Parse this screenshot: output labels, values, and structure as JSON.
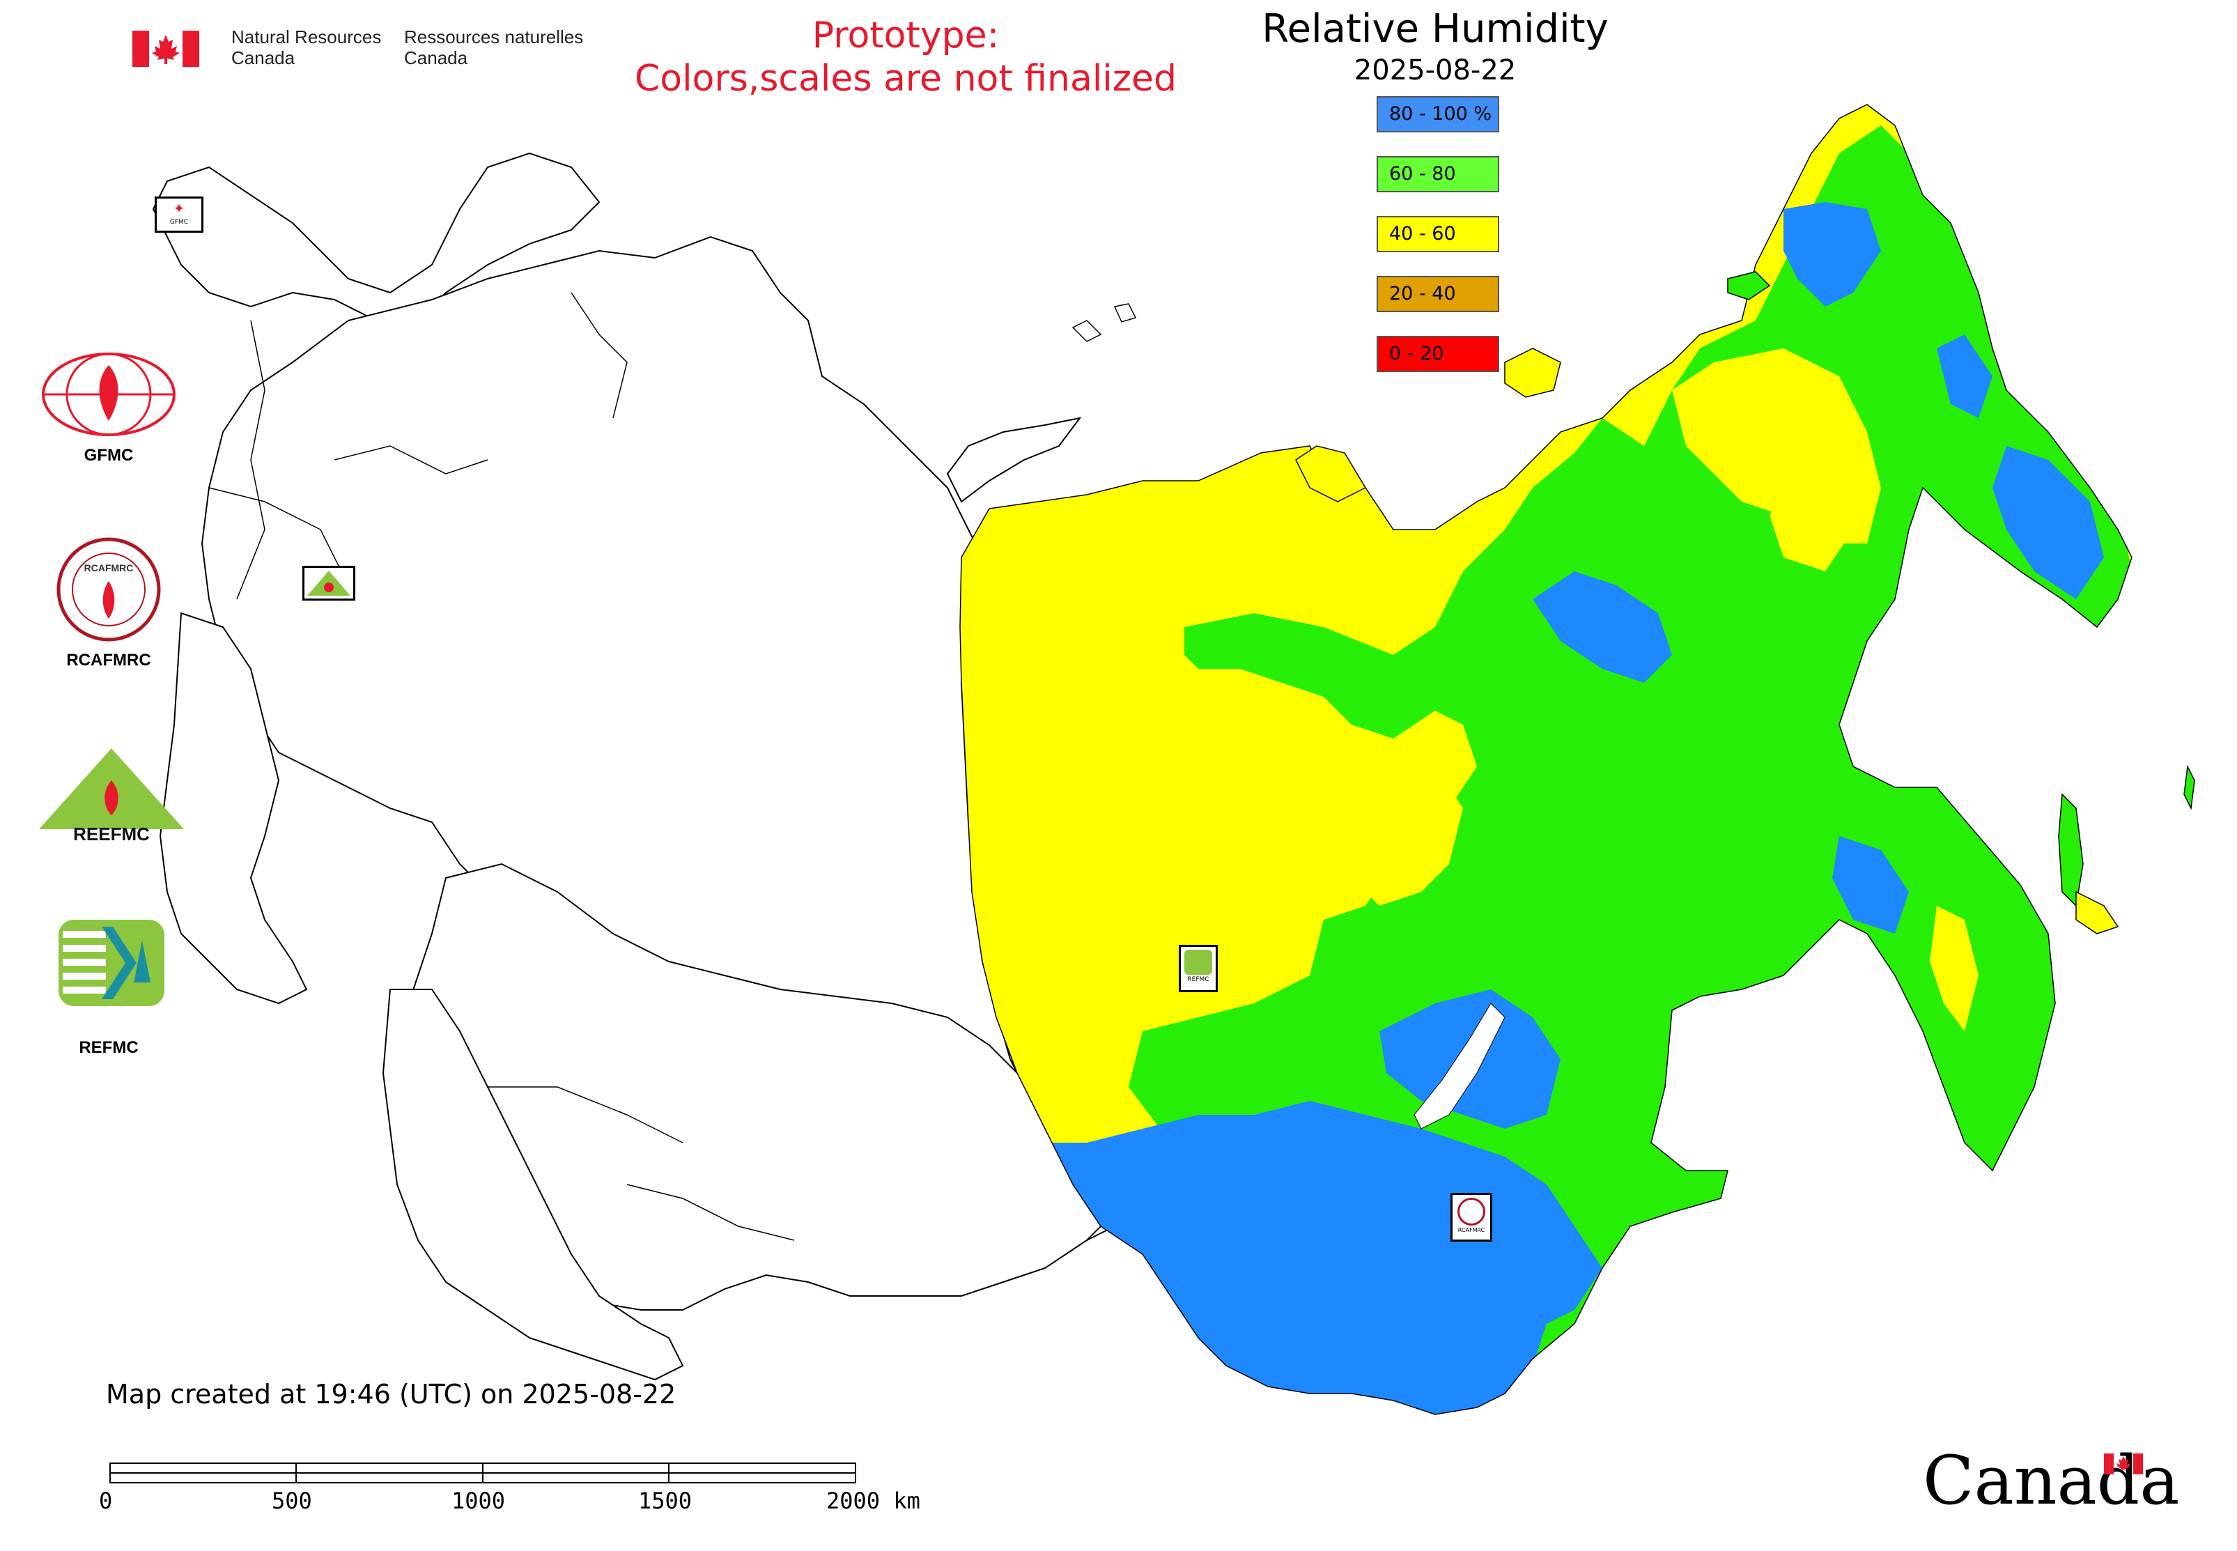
{
  "header": {
    "gov_en_line1": "Natural Resources",
    "gov_en_line2": "Canada",
    "gov_fr_line1": "Ressources naturelles",
    "gov_fr_line2": "Canada",
    "prototype_line1": "Prototype:",
    "prototype_line2": "Colors,scales are not finalized"
  },
  "map": {
    "title": "Relative Humidity",
    "date": "2025-08-22",
    "colors": {
      "blue": "#1e88ff",
      "green": "#27ee06",
      "yellow": "#ffff00",
      "water": "#ffffff",
      "border": "#000000"
    }
  },
  "legend": [
    {
      "label": "80 - 100 %",
      "color": "#3f8ff5"
    },
    {
      "label": "60 - 80",
      "color": "#66ff33"
    },
    {
      "label": "40 - 60",
      "color": "#ffff00"
    },
    {
      "label": "20 - 40",
      "color": "#e0a000"
    },
    {
      "label": "0 - 20",
      "color": "#ff0000"
    }
  ],
  "logos": {
    "gfmc": "GFMC",
    "rcafmrc": "RCAFMRC",
    "reefmc": "REEFMC",
    "refmc": "REFMC",
    "rcafmrc_ring": "RCAFMRC",
    "reefmc_word": "REEFMC",
    "gfmc_small": "GFMC",
    "refmc_small": "REFMC",
    "rcafmrc_small": "RCAFMRC"
  },
  "footer": {
    "created": "Map created at 19:46 (UTC) on 2025-08-22",
    "scale_ticks": [
      "0",
      "500",
      "1000",
      "1500",
      "2000 km"
    ],
    "canada_wordmark": "Canada"
  }
}
